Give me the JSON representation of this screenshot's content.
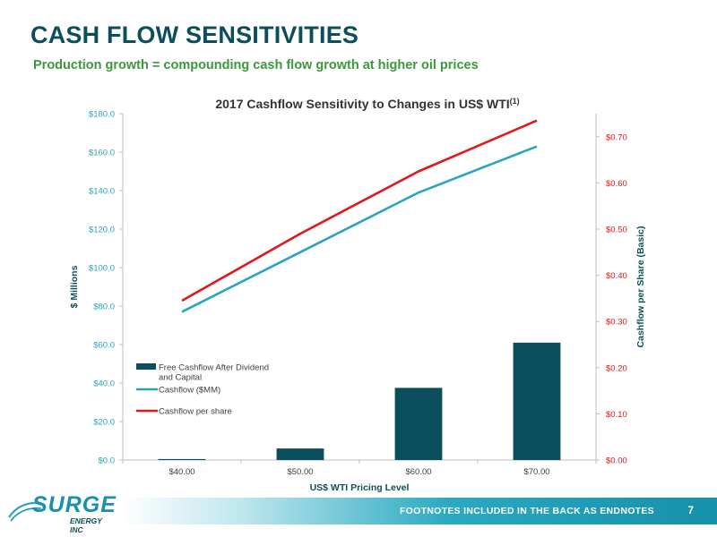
{
  "slide": {
    "title": "CASH FLOW SENSITIVITIES",
    "subtitle": "Production growth = compounding cash flow growth at higher oil prices"
  },
  "footer": {
    "note": "FOOTNOTES INCLUDED IN THE BACK AS ENDNOTES",
    "page_number": "7"
  },
  "logo": {
    "name": "SURGE",
    "subtitle": "ENERGY INC"
  },
  "colors": {
    "title": "#0b4f5c",
    "subtitle": "#3a9a3a",
    "bar": "#0b4f5c",
    "cashflow_line": "#2aa3c0",
    "per_share_line": "#e0181a",
    "left_axis_text": "#2aa3c0",
    "right_axis_text": "#e0181a"
  },
  "chart_data": {
    "type": "bar",
    "title": "2017 Cashflow Sensitivity to Changes in US$ WTI",
    "title_superscript": "(1)",
    "xlabel": "US$ WTI Pricing Level",
    "ylabel": "$ Millions",
    "y2label": "Cashflow per Share (Basic)",
    "categories": [
      "$40.00",
      "$50.00",
      "$60.00",
      "$70.00"
    ],
    "ylim": [
      0,
      180
    ],
    "y_ticks": [
      0,
      20,
      40,
      60,
      80,
      100,
      120,
      140,
      160,
      180
    ],
    "y_tick_labels": [
      "$0.0",
      "$20.0",
      "$40.0",
      "$60.0",
      "$80.0",
      "$100.0",
      "$120.0",
      "$140.0",
      "$160.0",
      "$180.0"
    ],
    "y2lim": [
      0,
      0.75
    ],
    "y2_ticks": [
      0,
      0.1,
      0.2,
      0.3,
      0.4,
      0.5,
      0.6,
      0.7
    ],
    "y2_tick_labels": [
      "$0.00",
      "$0.10",
      "$0.20",
      "$0.30",
      "$0.40",
      "$0.50",
      "$0.60",
      "$0.70"
    ],
    "grid": false,
    "legend_position": "bottom-left",
    "series": [
      {
        "name": "Free Cashflow After Dividend and Capital",
        "legend_lines": [
          "Free Cashflow After Dividend",
          "and Capital"
        ],
        "type": "bar",
        "axis": "left",
        "values": [
          0.5,
          6,
          37.5,
          61
        ]
      },
      {
        "name": "Cashflow ($MM)",
        "legend_lines": [
          "Cashflow ($MM)"
        ],
        "type": "line",
        "axis": "left",
        "values": [
          77,
          108,
          139,
          163
        ]
      },
      {
        "name": "Cashflow per share",
        "legend_lines": [
          "Cashflow per share"
        ],
        "type": "line",
        "axis": "right",
        "values": [
          0.345,
          0.49,
          0.625,
          0.735
        ]
      }
    ]
  }
}
